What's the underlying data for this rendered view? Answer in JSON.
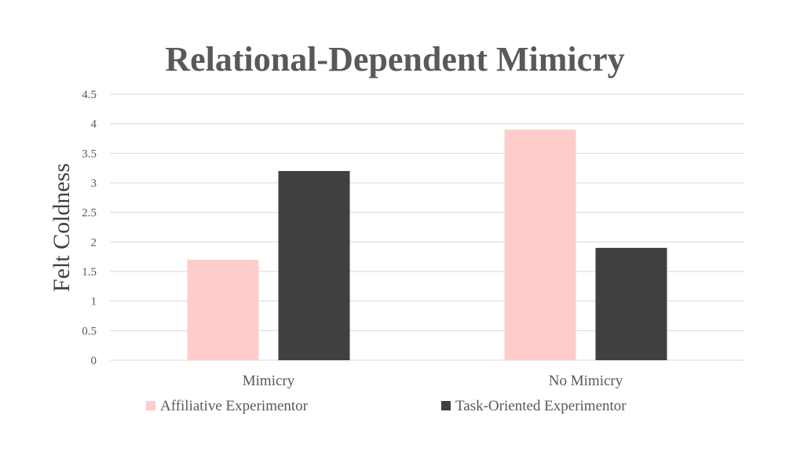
{
  "chart_data": {
    "type": "bar",
    "title": "Relational-Dependent Mimicry",
    "ylabel": "Felt Coldness",
    "xlabel": "",
    "categories": [
      "Mimicry",
      "No Mimicry"
    ],
    "series": [
      {
        "name": "Affiliative Experimentor",
        "values": [
          1.7,
          3.9
        ],
        "color": "#ffcccc"
      },
      {
        "name": "Task-Oriented Experimentor",
        "values": [
          3.2,
          1.9
        ],
        "color": "#404040"
      }
    ],
    "ylim": [
      0,
      4.5
    ],
    "yticks": [
      0,
      0.5,
      1,
      1.5,
      2,
      2.5,
      3,
      3.5,
      4,
      4.5
    ],
    "ytick_labels": [
      "0",
      "0.5",
      "1",
      "1.5",
      "2",
      "2.5",
      "3",
      "3.5",
      "4",
      "4.5"
    ],
    "grid": true,
    "legend": "bottom"
  }
}
